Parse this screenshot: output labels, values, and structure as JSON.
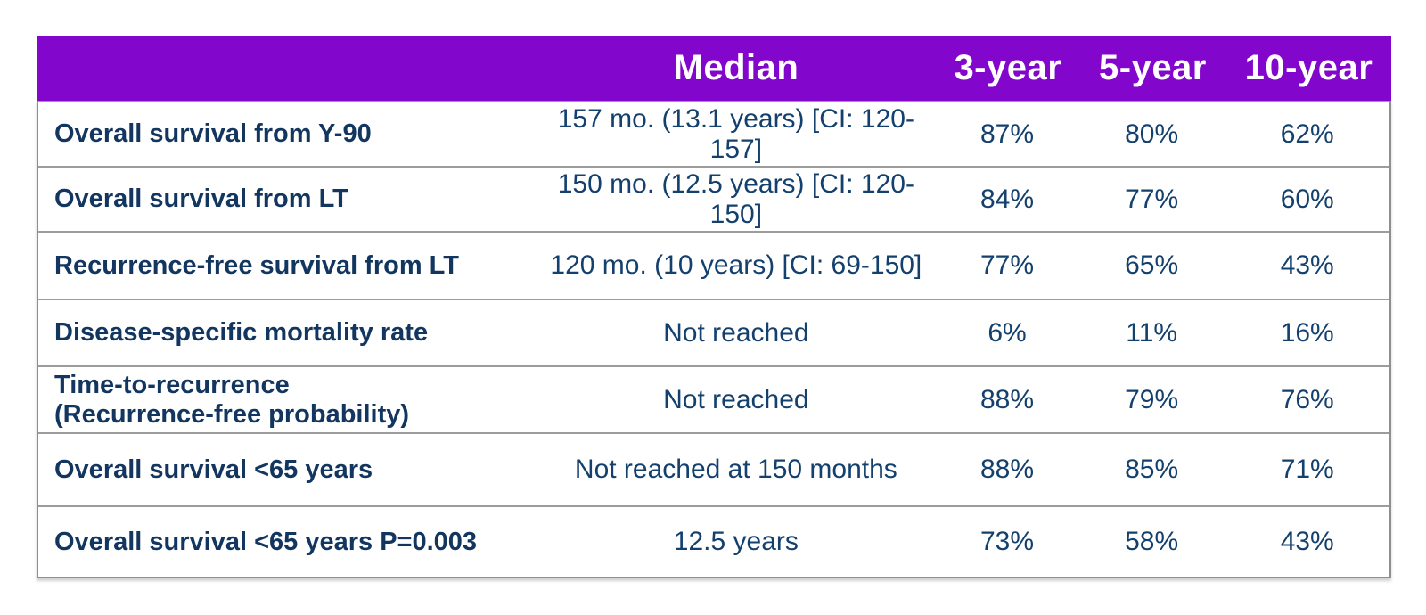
{
  "colors": {
    "header_bg": "#8206CB",
    "header_text": "#FFFFFF",
    "label_navy": "#12365F",
    "value_navy": "#14406E",
    "border_gray": "#9C9C9C",
    "page_bg": "#FFFFFF"
  },
  "table": {
    "header": {
      "median": "Median",
      "col_3yr": "3-year",
      "col_5yr": "5-year",
      "col_10yr": "10-year"
    },
    "rows": [
      {
        "label": "Overall survival from Y-90",
        "median": "157 mo. (13.1 years) [CI: 120-157]",
        "y3": "87%",
        "y5": "80%",
        "y10": "62%"
      },
      {
        "label": "Overall survival from LT",
        "median": "150 mo. (12.5 years) [CI: 120-150]",
        "y3": "84%",
        "y5": "77%",
        "y10": "60%"
      },
      {
        "label": "Recurrence-free survival from LT",
        "median": "120 mo. (10 years) [CI: 69-150]",
        "y3": "77%",
        "y5": "65%",
        "y10": "43%"
      },
      {
        "label": "Disease-specific mortality rate",
        "median": "Not reached",
        "y3": "6%",
        "y5": "11%",
        "y10": "16%"
      },
      {
        "label": "Time-to-recurrence",
        "label_line2": "(Recurrence-free probability)",
        "median": "Not reached",
        "y3": "88%",
        "y5": "79%",
        "y10": "76%"
      },
      {
        "label": "Overall survival <65 years",
        "median": "Not reached at 150 months",
        "y3": "88%",
        "y5": "85%",
        "y10": "71%"
      },
      {
        "label": "Overall survival <65 years P=0.003",
        "median": "12.5 years",
        "y3": "73%",
        "y5": "58%",
        "y10": "43%"
      }
    ]
  },
  "chart_data": {
    "type": "table",
    "title": "",
    "columns": [
      "",
      "Median",
      "3-year",
      "5-year",
      "10-year"
    ],
    "rows": [
      [
        "Overall survival from Y-90",
        "157 mo. (13.1 years) [CI: 120-157]",
        "87%",
        "80%",
        "62%"
      ],
      [
        "Overall survival from LT",
        "150 mo. (12.5 years) [CI: 120-150]",
        "84%",
        "77%",
        "60%"
      ],
      [
        "Recurrence-free survival from LT",
        "120 mo. (10 years) [CI: 69-150]",
        "77%",
        "65%",
        "43%"
      ],
      [
        "Disease-specific mortality rate",
        "Not reached",
        "6%",
        "11%",
        "16%"
      ],
      [
        "Time-to-recurrence (Recurrence-free probability)",
        "Not reached",
        "88%",
        "79%",
        "76%"
      ],
      [
        "Overall survival <65 years",
        "Not reached at 150 months",
        "88%",
        "85%",
        "71%"
      ],
      [
        "Overall survival <65 years P=0.003",
        "12.5 years",
        "73%",
        "58%",
        "43%"
      ]
    ]
  }
}
